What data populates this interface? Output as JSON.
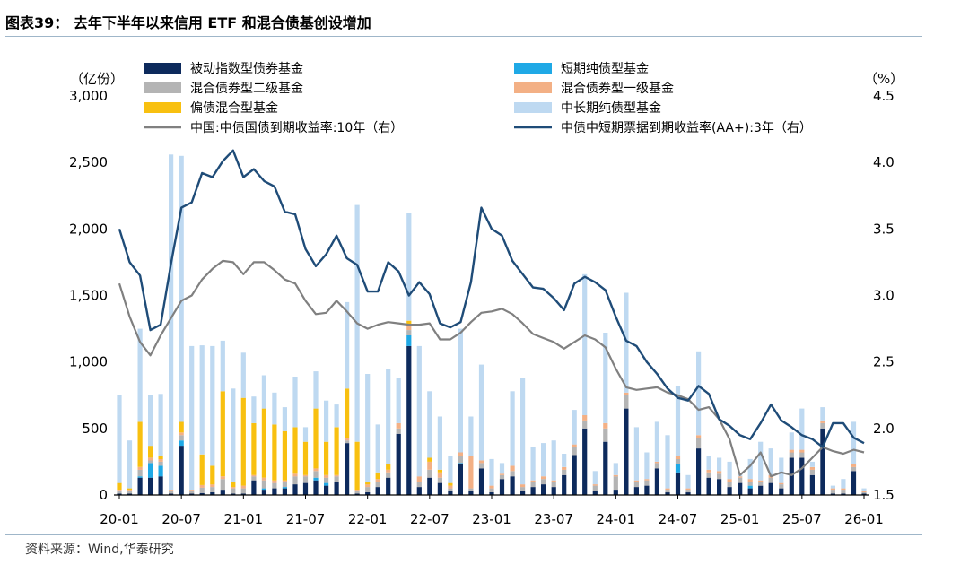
{
  "header": {
    "title": "图表39：  去年下半年以来信用 ETF 和混合债基创设增加"
  },
  "footer": {
    "source": "资料来源：Wind,华泰研究"
  },
  "colors": {
    "passive": "#0d2a5c",
    "short": "#1fa9e6",
    "mixed2": "#b4b4b4",
    "mixed1": "#f3b085",
    "partial": "#f8c010",
    "midlong": "#bed9f1",
    "gov10y": "#808080",
    "cp3y": "#1f4c78"
  },
  "chart_data": {
    "type": "bar",
    "stacked": true,
    "title": "",
    "left_axis": {
      "unit": "（亿份）",
      "min": 0,
      "max": 3000,
      "tick_labels": [
        "0",
        "500",
        "1,000",
        "1,500",
        "2,000",
        "2,500",
        "3,000"
      ]
    },
    "right_axis": {
      "unit": "（%）",
      "min": 1.5,
      "max": 4.5,
      "tick_labels": [
        "1.5",
        "2.0",
        "2.5",
        "3.0",
        "3.5",
        "4.0",
        "4.5"
      ]
    },
    "x_tick_labels": [
      "20-01",
      "20-07",
      "21-01",
      "21-07",
      "22-01",
      "22-07",
      "23-01",
      "23-07",
      "24-01",
      "24-07",
      "25-01",
      "25-07",
      "26-01"
    ],
    "legend": [
      {
        "key": "passive",
        "label": "被动指数型债券基金",
        "kind": "bar"
      },
      {
        "key": "short",
        "label": "短期纯债型基金",
        "kind": "bar"
      },
      {
        "key": "mixed2",
        "label": "混合债券型二级基金",
        "kind": "bar"
      },
      {
        "key": "mixed1",
        "label": "混合债券型一级基金",
        "kind": "bar"
      },
      {
        "key": "partial",
        "label": "偏债混合型基金",
        "kind": "bar"
      },
      {
        "key": "midlong",
        "label": "中长期纯债型基金",
        "kind": "bar"
      },
      {
        "key": "gov10y",
        "label": "中国:中债国债到期收益率:10年（右）",
        "kind": "line"
      },
      {
        "key": "cp3y",
        "label": "中债中短期票据到期收益率(AA+):3年（右）",
        "kind": "line"
      }
    ],
    "months": [
      "2020-01",
      "2020-02",
      "2020-03",
      "2020-04",
      "2020-05",
      "2020-06",
      "2020-07",
      "2020-08",
      "2020-09",
      "2020-10",
      "2020-11",
      "2020-12",
      "2021-01",
      "2021-02",
      "2021-03",
      "2021-04",
      "2021-05",
      "2021-06",
      "2021-07",
      "2021-08",
      "2021-09",
      "2021-10",
      "2021-11",
      "2021-12",
      "2022-01",
      "2022-02",
      "2022-03",
      "2022-04",
      "2022-05",
      "2022-06",
      "2022-07",
      "2022-08",
      "2022-09",
      "2022-10",
      "2022-11",
      "2022-12",
      "2023-01",
      "2023-02",
      "2023-03",
      "2023-04",
      "2023-05",
      "2023-06",
      "2023-07",
      "2023-08",
      "2023-09",
      "2023-10",
      "2023-11",
      "2023-12",
      "2024-01",
      "2024-02",
      "2024-03",
      "2024-04",
      "2024-05",
      "2024-06",
      "2024-07",
      "2024-08",
      "2024-09",
      "2024-10",
      "2024-11",
      "2024-12",
      "2025-01",
      "2025-02",
      "2025-03",
      "2025-04",
      "2025-05",
      "2025-06",
      "2025-07",
      "2025-08",
      "2025-09",
      "2025-10",
      "2025-11",
      "2025-12",
      "2026-01"
    ],
    "series": [
      {
        "key": "passive",
        "label": "被动指数型债券基金",
        "values": [
          10,
          10,
          130,
          130,
          140,
          10,
          370,
          10,
          15,
          20,
          40,
          10,
          10,
          110,
          40,
          50,
          50,
          80,
          90,
          110,
          70,
          100,
          390,
          10,
          20,
          60,
          130,
          460,
          1120,
          60,
          130,
          90,
          30,
          230,
          30,
          200,
          20,
          120,
          140,
          30,
          60,
          80,
          60,
          150,
          300,
          500,
          30,
          400,
          40,
          650,
          60,
          70,
          200,
          20,
          170,
          20,
          350,
          130,
          120,
          60,
          90,
          50,
          70,
          90,
          50,
          280,
          280,
          150,
          500,
          10,
          10,
          180,
          10
        ]
      },
      {
        "key": "short",
        "label": "短期纯债型基金",
        "values": [
          0,
          0,
          10,
          110,
          80,
          0,
          40,
          0,
          0,
          0,
          0,
          0,
          0,
          0,
          10,
          0,
          10,
          0,
          0,
          20,
          20,
          0,
          0,
          0,
          0,
          0,
          0,
          0,
          80,
          0,
          0,
          0,
          0,
          10,
          0,
          0,
          0,
          0,
          0,
          0,
          0,
          0,
          0,
          0,
          0,
          0,
          0,
          0,
          0,
          0,
          0,
          0,
          0,
          0,
          60,
          0,
          0,
          0,
          0,
          0,
          0,
          20,
          0,
          0,
          0,
          0,
          0,
          0,
          0,
          0,
          0,
          0,
          0
        ]
      },
      {
        "key": "mixed2",
        "label": "混合债券型二级基金",
        "values": [
          20,
          20,
          50,
          20,
          30,
          20,
          40,
          20,
          40,
          40,
          80,
          40,
          40,
          30,
          60,
          40,
          40,
          60,
          50,
          50,
          40,
          40,
          20,
          20,
          40,
          40,
          40,
          40,
          40,
          40,
          60,
          40,
          20,
          50,
          20,
          40,
          30,
          30,
          40,
          30,
          40,
          40,
          40,
          40,
          60,
          60,
          40,
          100,
          100,
          100,
          40,
          40,
          40,
          20,
          40,
          20,
          80,
          40,
          40,
          40,
          40,
          30,
          30,
          40,
          30,
          40,
          40,
          40,
          40,
          30,
          30,
          30,
          10
        ]
      },
      {
        "key": "mixed1",
        "label": "混合债券型一级基金",
        "values": [
          10,
          10,
          20,
          20,
          20,
          10,
          20,
          10,
          20,
          20,
          20,
          10,
          20,
          10,
          20,
          20,
          10,
          20,
          10,
          20,
          20,
          10,
          20,
          10,
          20,
          20,
          20,
          40,
          40,
          40,
          60,
          40,
          20,
          30,
          240,
          20,
          20,
          10,
          40,
          20,
          10,
          20,
          10,
          20,
          20,
          40,
          10,
          40,
          10,
          20,
          10,
          10,
          10,
          10,
          20,
          10,
          20,
          20,
          20,
          20,
          10,
          20,
          10,
          20,
          10,
          20,
          20,
          20,
          20,
          10,
          10,
          20,
          10
        ]
      },
      {
        "key": "partial",
        "label": "偏债混合型基金",
        "values": [
          50,
          10,
          340,
          90,
          20,
          0,
          80,
          0,
          230,
          140,
          640,
          40,
          660,
          390,
          520,
          420,
          370,
          350,
          250,
          450,
          250,
          360,
          370,
          360,
          20,
          50,
          40,
          0,
          30,
          0,
          30,
          20,
          20,
          0,
          0,
          0,
          0,
          0,
          0,
          0,
          0,
          0,
          0,
          0,
          0,
          0,
          0,
          0,
          0,
          0,
          0,
          0,
          0,
          0,
          0,
          0,
          0,
          0,
          0,
          0,
          0,
          0,
          0,
          0,
          0,
          0,
          0,
          0,
          0,
          0,
          0,
          0,
          0
        ]
      },
      {
        "key": "midlong",
        "label": "中长期纯债型基金",
        "values": [
          660,
          360,
          700,
          380,
          470,
          2520,
          2000,
          1080,
          820,
          900,
          380,
          700,
          340,
          200,
          250,
          240,
          180,
          380,
          110,
          280,
          310,
          170,
          650,
          1780,
          810,
          360,
          720,
          340,
          810,
          980,
          500,
          400,
          200,
          930,
          300,
          720,
          200,
          80,
          560,
          800,
          250,
          250,
          300,
          100,
          260,
          1060,
          100,
          680,
          90,
          750,
          400,
          200,
          300,
          400,
          530,
          100,
          630,
          100,
          100,
          130,
          20,
          150,
          290,
          200,
          190,
          130,
          310,
          40,
          100,
          20,
          70,
          320,
          20
        ]
      },
      {
        "key": "gov10y",
        "label": "中国:中债国债到期收益率:10年（右）",
        "axis": "right",
        "values": [
          3.09,
          2.84,
          2.65,
          2.55,
          2.7,
          2.83,
          2.96,
          3.0,
          3.12,
          3.2,
          3.26,
          3.25,
          3.16,
          3.25,
          3.25,
          3.19,
          3.12,
          3.09,
          2.96,
          2.86,
          2.87,
          2.96,
          2.88,
          2.79,
          2.75,
          2.78,
          2.8,
          2.79,
          2.78,
          2.78,
          2.79,
          2.67,
          2.67,
          2.72,
          2.8,
          2.87,
          2.88,
          2.9,
          2.86,
          2.79,
          2.71,
          2.68,
          2.65,
          2.6,
          2.65,
          2.7,
          2.67,
          2.61,
          2.45,
          2.31,
          2.29,
          2.3,
          2.31,
          2.27,
          2.25,
          2.22,
          2.14,
          2.16,
          2.07,
          1.92,
          1.65,
          1.72,
          1.82,
          1.64,
          1.67,
          1.65,
          1.7,
          1.78,
          1.86,
          1.83,
          1.81,
          1.84,
          1.82
        ]
      },
      {
        "key": "cp3y",
        "label": "中债中短期票据到期收益率(AA+):3年（右）",
        "axis": "right",
        "values": [
          3.5,
          3.25,
          3.15,
          2.74,
          2.78,
          3.24,
          3.66,
          3.7,
          3.92,
          3.89,
          4.01,
          4.09,
          3.89,
          3.95,
          3.86,
          3.82,
          3.63,
          3.61,
          3.35,
          3.22,
          3.31,
          3.45,
          3.28,
          3.23,
          3.03,
          3.03,
          3.25,
          3.18,
          3.0,
          3.1,
          3.01,
          2.79,
          2.76,
          2.8,
          3.1,
          3.66,
          3.5,
          3.45,
          3.26,
          3.16,
          3.06,
          3.05,
          2.98,
          2.89,
          3.09,
          3.14,
          3.1,
          3.04,
          2.84,
          2.66,
          2.62,
          2.5,
          2.41,
          2.3,
          2.23,
          2.21,
          2.32,
          2.26,
          2.07,
          2.02,
          1.95,
          1.92,
          2.04,
          2.18,
          2.06,
          2.01,
          1.95,
          1.92,
          1.86,
          2.04,
          2.04,
          1.93,
          1.89
        ]
      }
    ]
  }
}
